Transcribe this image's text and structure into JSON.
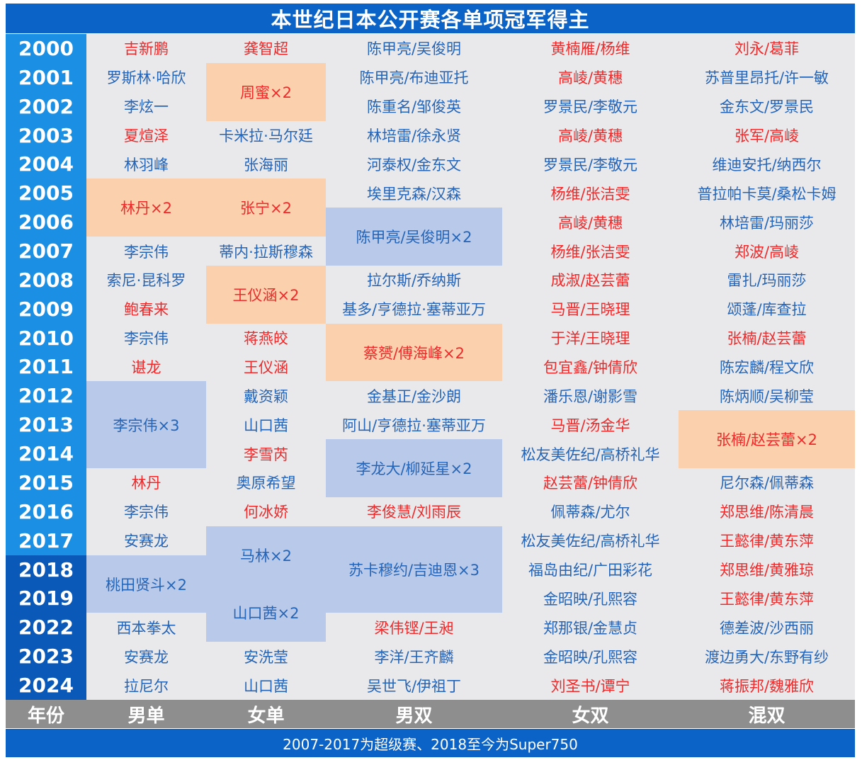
{
  "title": "本世纪日本公开赛各单项冠军得主",
  "headers": [
    "年份",
    "男单",
    "女单",
    "男双",
    "女双",
    "混双"
  ],
  "footer": "2007-2017为超级赛、2018至今为Super750",
  "colors": {
    "blue_text": "#2565b8",
    "red_text": "#ee2a2a",
    "orange_bg": "#fbd0ad",
    "blue_bg": "#b8c9ea",
    "year_light": "#1a8fe3",
    "year_dark": "#0a58b8"
  },
  "years": [
    "2000",
    "2001",
    "2002",
    "2003",
    "2004",
    "2005",
    "2006",
    "2007",
    "2008",
    "2009",
    "2010",
    "2011",
    "2012",
    "2013",
    "2014",
    "2015",
    "2016",
    "2017",
    "2018",
    "2019",
    "2022",
    "2023",
    "2024"
  ],
  "cells": [
    {
      "col": 0,
      "r": 0,
      "s": 1,
      "text": "吉新鹏",
      "color": "red"
    },
    {
      "col": 0,
      "r": 1,
      "s": 1,
      "text": "罗斯林·哈欣",
      "color": "blue"
    },
    {
      "col": 0,
      "r": 2,
      "s": 1,
      "text": "李炫一",
      "color": "blue"
    },
    {
      "col": 0,
      "r": 3,
      "s": 1,
      "text": "夏煊泽",
      "color": "red"
    },
    {
      "col": 0,
      "r": 4,
      "s": 1,
      "text": "林羽峰",
      "color": "blue"
    },
    {
      "col": 0,
      "r": 5,
      "s": 2,
      "text": "林丹×2",
      "color": "red",
      "bg": "orange"
    },
    {
      "col": 0,
      "r": 7,
      "s": 1,
      "text": "李宗伟",
      "color": "blue"
    },
    {
      "col": 0,
      "r": 8,
      "s": 1,
      "text": "索尼·昆科罗",
      "color": "blue"
    },
    {
      "col": 0,
      "r": 9,
      "s": 1,
      "text": "鲍春来",
      "color": "red"
    },
    {
      "col": 0,
      "r": 10,
      "s": 1,
      "text": "李宗伟",
      "color": "blue"
    },
    {
      "col": 0,
      "r": 11,
      "s": 1,
      "text": "谌龙",
      "color": "red"
    },
    {
      "col": 0,
      "r": 12,
      "s": 3,
      "text": "李宗伟×3",
      "color": "blue",
      "bg": "blue"
    },
    {
      "col": 0,
      "r": 15,
      "s": 1,
      "text": "林丹",
      "color": "red"
    },
    {
      "col": 0,
      "r": 16,
      "s": 1,
      "text": "李宗伟",
      "color": "blue"
    },
    {
      "col": 0,
      "r": 17,
      "s": 1,
      "text": "安赛龙",
      "color": "blue"
    },
    {
      "col": 0,
      "r": 18,
      "s": 2,
      "text": "桃田贤斗×2",
      "color": "blue",
      "bg": "blue"
    },
    {
      "col": 0,
      "r": 20,
      "s": 1,
      "text": "西本拳太",
      "color": "blue"
    },
    {
      "col": 0,
      "r": 21,
      "s": 1,
      "text": "安赛龙",
      "color": "blue"
    },
    {
      "col": 0,
      "r": 22,
      "s": 1,
      "text": "拉尼尔",
      "color": "blue"
    },
    {
      "col": 1,
      "r": 0,
      "s": 1,
      "text": "龚智超",
      "color": "red"
    },
    {
      "col": 1,
      "r": 1,
      "s": 2,
      "text": "周蜜×2",
      "color": "red",
      "bg": "orange"
    },
    {
      "col": 1,
      "r": 3,
      "s": 1,
      "text": "卡米拉·马尔廷",
      "color": "blue"
    },
    {
      "col": 1,
      "r": 4,
      "s": 1,
      "text": "张海丽",
      "color": "blue"
    },
    {
      "col": 1,
      "r": 5,
      "s": 2,
      "text": "张宁×2",
      "color": "red",
      "bg": "orange"
    },
    {
      "col": 1,
      "r": 7,
      "s": 1,
      "text": "蒂内·拉斯穆森",
      "color": "blue"
    },
    {
      "col": 1,
      "r": 8,
      "s": 2,
      "text": "王仪涵×2",
      "color": "red",
      "bg": "orange"
    },
    {
      "col": 1,
      "r": 10,
      "s": 1,
      "text": "蒋燕皎",
      "color": "red"
    },
    {
      "col": 1,
      "r": 11,
      "s": 1,
      "text": "王仪涵",
      "color": "red"
    },
    {
      "col": 1,
      "r": 12,
      "s": 1,
      "text": "戴资颖",
      "color": "blue"
    },
    {
      "col": 1,
      "r": 13,
      "s": 1,
      "text": "山口茜",
      "color": "blue"
    },
    {
      "col": 1,
      "r": 14,
      "s": 1,
      "text": "李雪芮",
      "color": "red"
    },
    {
      "col": 1,
      "r": 15,
      "s": 1,
      "text": "奥原希望",
      "color": "blue"
    },
    {
      "col": 1,
      "r": 16,
      "s": 1,
      "text": "何冰娇",
      "color": "red"
    },
    {
      "col": 1,
      "r": 17,
      "s": 2,
      "text": "马林×2",
      "color": "blue",
      "bg": "blue"
    },
    {
      "col": 1,
      "r": 19,
      "s": 2,
      "text": "山口茜×2",
      "color": "blue",
      "bg": "blue"
    },
    {
      "col": 1,
      "r": 21,
      "s": 1,
      "text": "安洗莹",
      "color": "blue"
    },
    {
      "col": 1,
      "r": 22,
      "s": 1,
      "text": "山口茜",
      "color": "blue"
    },
    {
      "col": 2,
      "r": 0,
      "s": 1,
      "text": "陈甲亮/吴俊明",
      "color": "blue"
    },
    {
      "col": 2,
      "r": 1,
      "s": 1,
      "text": "陈甲亮/布迪亚托",
      "color": "blue"
    },
    {
      "col": 2,
      "r": 2,
      "s": 1,
      "text": "陈重名/邹俊英",
      "color": "blue"
    },
    {
      "col": 2,
      "r": 3,
      "s": 1,
      "text": "林培雷/徐永贤",
      "color": "blue"
    },
    {
      "col": 2,
      "r": 4,
      "s": 1,
      "text": "河泰权/金东文",
      "color": "blue"
    },
    {
      "col": 2,
      "r": 5,
      "s": 1,
      "text": "埃里克森/汉森",
      "color": "blue"
    },
    {
      "col": 2,
      "r": 6,
      "s": 2,
      "text": "陈甲亮/吴俊明×2",
      "color": "blue",
      "bg": "blue"
    },
    {
      "col": 2,
      "r": 8,
      "s": 1,
      "text": "拉尔斯/乔纳斯",
      "color": "blue"
    },
    {
      "col": 2,
      "r": 9,
      "s": 1,
      "text": "基多/亨德拉·塞蒂亚万",
      "color": "blue"
    },
    {
      "col": 2,
      "r": 10,
      "s": 2,
      "text": "蔡赟/傅海峰×2",
      "color": "red",
      "bg": "orange"
    },
    {
      "col": 2,
      "r": 12,
      "s": 1,
      "text": "金基正/金沙朗",
      "color": "blue"
    },
    {
      "col": 2,
      "r": 13,
      "s": 1,
      "text": "阿山/亨德拉·塞蒂亚万",
      "color": "blue"
    },
    {
      "col": 2,
      "r": 14,
      "s": 2,
      "text": "李龙大/柳延星×2",
      "color": "blue",
      "bg": "blue"
    },
    {
      "col": 2,
      "r": 16,
      "s": 1,
      "text": "李俊慧/刘雨辰",
      "color": "red"
    },
    {
      "col": 2,
      "r": 17,
      "s": 3,
      "text": "苏卡穆约/吉迪恩×3",
      "color": "blue",
      "bg": "blue"
    },
    {
      "col": 2,
      "r": 20,
      "s": 1,
      "text": "梁伟铿/王昶",
      "color": "red"
    },
    {
      "col": 2,
      "r": 21,
      "s": 1,
      "text": "李洋/王齐麟",
      "color": "blue"
    },
    {
      "col": 2,
      "r": 22,
      "s": 1,
      "text": "吴世飞/伊祖丁",
      "color": "blue"
    },
    {
      "col": 3,
      "r": 0,
      "s": 1,
      "text": "黄楠雁/杨维",
      "color": "red"
    },
    {
      "col": 3,
      "r": 1,
      "s": 1,
      "text": "高崚/黄穗",
      "color": "red"
    },
    {
      "col": 3,
      "r": 2,
      "s": 1,
      "text": "罗景民/李敬元",
      "color": "blue"
    },
    {
      "col": 3,
      "r": 3,
      "s": 1,
      "text": "高崚/黄穗",
      "color": "red"
    },
    {
      "col": 3,
      "r": 4,
      "s": 1,
      "text": "罗景民/李敬元",
      "color": "blue"
    },
    {
      "col": 3,
      "r": 5,
      "s": 1,
      "text": "杨维/张洁雯",
      "color": "red"
    },
    {
      "col": 3,
      "r": 6,
      "s": 1,
      "text": "高崚/黄穗",
      "color": "red"
    },
    {
      "col": 3,
      "r": 7,
      "s": 1,
      "text": "杨维/张洁雯",
      "color": "red"
    },
    {
      "col": 3,
      "r": 8,
      "s": 1,
      "text": "成淑/赵芸蕾",
      "color": "red"
    },
    {
      "col": 3,
      "r": 9,
      "s": 1,
      "text": "马晋/王晓理",
      "color": "red"
    },
    {
      "col": 3,
      "r": 10,
      "s": 1,
      "text": "于洋/王晓理",
      "color": "red"
    },
    {
      "col": 3,
      "r": 11,
      "s": 1,
      "text": "包宜鑫/钟倩欣",
      "color": "red"
    },
    {
      "col": 3,
      "r": 12,
      "s": 1,
      "text": "潘乐恩/谢影雪",
      "color": "blue"
    },
    {
      "col": 3,
      "r": 13,
      "s": 1,
      "text": "马晋/汤金华",
      "color": "red"
    },
    {
      "col": 3,
      "r": 14,
      "s": 1,
      "text": "松友美佐纪/高桥礼华",
      "color": "blue"
    },
    {
      "col": 3,
      "r": 15,
      "s": 1,
      "text": "赵芸蕾/钟倩欣",
      "color": "red"
    },
    {
      "col": 3,
      "r": 16,
      "s": 1,
      "text": "佩蒂森/尤尔",
      "color": "blue"
    },
    {
      "col": 3,
      "r": 17,
      "s": 1,
      "text": "松友美佐纪/高桥礼华",
      "color": "blue"
    },
    {
      "col": 3,
      "r": 18,
      "s": 1,
      "text": "福岛由纪/广田彩花",
      "color": "blue"
    },
    {
      "col": 3,
      "r": 19,
      "s": 1,
      "text": "金昭映/孔熙容",
      "color": "blue"
    },
    {
      "col": 3,
      "r": 20,
      "s": 1,
      "text": "郑那银/金慧贞",
      "color": "blue"
    },
    {
      "col": 3,
      "r": 21,
      "s": 1,
      "text": "金昭映/孔熙容",
      "color": "blue"
    },
    {
      "col": 3,
      "r": 22,
      "s": 1,
      "text": "刘圣书/谭宁",
      "color": "red"
    },
    {
      "col": 4,
      "r": 0,
      "s": 1,
      "text": "刘永/葛菲",
      "color": "red"
    },
    {
      "col": 4,
      "r": 1,
      "s": 1,
      "text": "苏普里昂托/许一敏",
      "color": "blue"
    },
    {
      "col": 4,
      "r": 2,
      "s": 1,
      "text": "金东文/罗景民",
      "color": "blue"
    },
    {
      "col": 4,
      "r": 3,
      "s": 1,
      "text": "张军/高崚",
      "color": "red"
    },
    {
      "col": 4,
      "r": 4,
      "s": 1,
      "text": "维迪安托/纳西尔",
      "color": "blue"
    },
    {
      "col": 4,
      "r": 5,
      "s": 1,
      "text": "普拉帕卡莫/桑松卡姆",
      "color": "blue"
    },
    {
      "col": 4,
      "r": 6,
      "s": 1,
      "text": "林培雷/玛丽莎",
      "color": "blue"
    },
    {
      "col": 4,
      "r": 7,
      "s": 1,
      "text": "郑波/高崚",
      "color": "red"
    },
    {
      "col": 4,
      "r": 8,
      "s": 1,
      "text": "雷扎/玛丽莎",
      "color": "blue"
    },
    {
      "col": 4,
      "r": 9,
      "s": 1,
      "text": "颂蓬/库查拉",
      "color": "blue"
    },
    {
      "col": 4,
      "r": 10,
      "s": 1,
      "text": "张楠/赵芸蕾",
      "color": "red"
    },
    {
      "col": 4,
      "r": 11,
      "s": 1,
      "text": "陈宏麟/程文欣",
      "color": "blue"
    },
    {
      "col": 4,
      "r": 12,
      "s": 1,
      "text": "陈炳顺/吴柳莹",
      "color": "blue"
    },
    {
      "col": 4,
      "r": 13,
      "s": 2,
      "text": "张楠/赵芸蕾×2",
      "color": "red",
      "bg": "orange"
    },
    {
      "col": 4,
      "r": 15,
      "s": 1,
      "text": "尼尔森/佩蒂森",
      "color": "blue"
    },
    {
      "col": 4,
      "r": 16,
      "s": 1,
      "text": "郑思维/陈清晨",
      "color": "red"
    },
    {
      "col": 4,
      "r": 17,
      "s": 1,
      "text": "王懿律/黄东萍",
      "color": "red"
    },
    {
      "col": 4,
      "r": 18,
      "s": 1,
      "text": "郑思维/黄雅琼",
      "color": "red"
    },
    {
      "col": 4,
      "r": 19,
      "s": 1,
      "text": "王懿律/黄东萍",
      "color": "red"
    },
    {
      "col": 4,
      "r": 20,
      "s": 1,
      "text": "德差波/沙西丽",
      "color": "blue"
    },
    {
      "col": 4,
      "r": 21,
      "s": 1,
      "text": "渡边勇大/东野有纱",
      "color": "blue"
    },
    {
      "col": 4,
      "r": 22,
      "s": 1,
      "text": "蒋振邦/魏雅欣",
      "color": "red"
    }
  ]
}
